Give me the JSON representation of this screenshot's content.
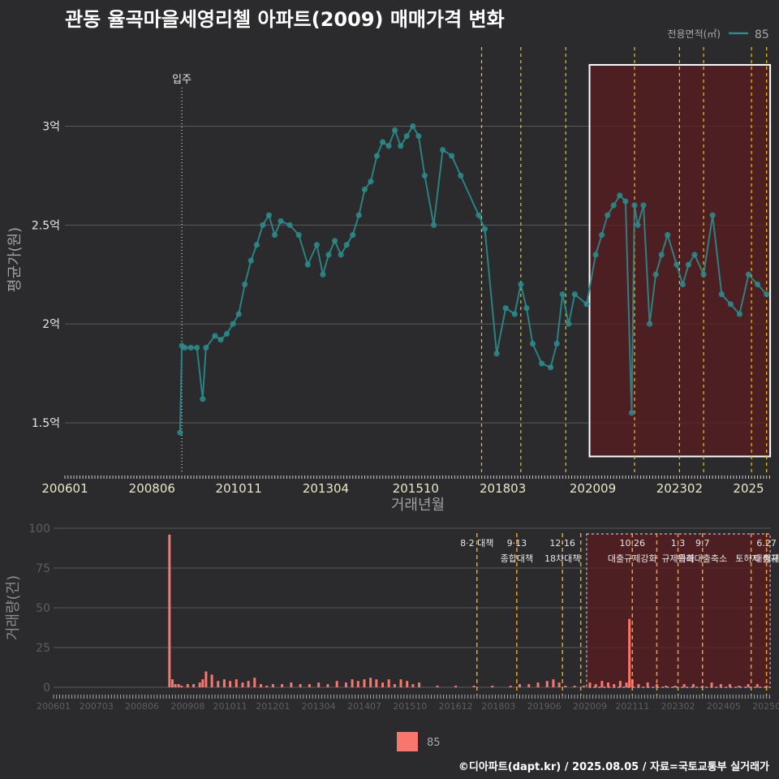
{
  "title": "관동 율곡마을세영리첼 아파트(2009) 매매가격 변화",
  "footer": "©디아파트(dapt.kr) / 2025.08.05 / 자료=국토교통부 실거래가",
  "colors": {
    "background": "#2b2b2d",
    "series": "#2a8c8c",
    "volume_bar": "#f8766d",
    "policy_line": "#f5c400",
    "highlight_fill": "#5a1c1f",
    "grid": "#5a5a5a"
  },
  "chart_data": [
    {
      "type": "line",
      "title": "관동 율곡마을세영리첼 아파트(2009) 매매가격 변화",
      "xlabel": "거래년월",
      "ylabel": "평균가(원)",
      "x_range": [
        2006.0,
        2025.62
      ],
      "ylim": [
        1.25,
        3.4
      ],
      "y_ticks": [
        {
          "v": 1.5,
          "label": "1.5억"
        },
        {
          "v": 2.0,
          "label": "2억"
        },
        {
          "v": 2.5,
          "label": "2.5억"
        },
        {
          "v": 3.0,
          "label": "3억"
        }
      ],
      "x_ticks": [
        {
          "v": 2006.0,
          "label": "200601"
        },
        {
          "v": 2008.42,
          "label": "200806"
        },
        {
          "v": 2010.83,
          "label": "201011"
        },
        {
          "v": 2013.25,
          "label": "201304"
        },
        {
          "v": 2015.75,
          "label": "201510"
        },
        {
          "v": 2018.17,
          "label": "201803"
        },
        {
          "v": 2020.67,
          "label": "202009"
        },
        {
          "v": 2023.08,
          "label": "202302"
        },
        {
          "v": 2025.0,
          "label": "2025"
        }
      ],
      "legend": {
        "title": "전용면적(㎡)",
        "label": "85",
        "position": "top-right"
      },
      "annotation": {
        "label": "입주",
        "x": 2009.25
      },
      "policy_lines_x": [
        2017.58,
        2018.67,
        2019.92,
        2021.83,
        2023.08,
        2023.75,
        2025.08,
        2025.5
      ],
      "highlight": {
        "x_start": 2020.58,
        "x_end": 2025.6,
        "y_start": 1.33,
        "y_end": 3.31
      },
      "series": [
        {
          "name": "85",
          "x": [
            2009.2,
            2009.25,
            2009.33,
            2009.5,
            2009.67,
            2009.83,
            2009.92,
            2010.17,
            2010.33,
            2010.5,
            2010.67,
            2010.83,
            2011.0,
            2011.17,
            2011.33,
            2011.5,
            2011.67,
            2011.83,
            2012.0,
            2012.25,
            2012.5,
            2012.75,
            2013.0,
            2013.17,
            2013.33,
            2013.5,
            2013.67,
            2013.83,
            2014.0,
            2014.17,
            2014.33,
            2014.5,
            2014.67,
            2014.83,
            2015.0,
            2015.17,
            2015.33,
            2015.5,
            2015.67,
            2015.83,
            2016.0,
            2016.25,
            2016.5,
            2016.75,
            2017.0,
            2017.5,
            2017.67,
            2018.0,
            2018.25,
            2018.5,
            2018.67,
            2018.83,
            2019.0,
            2019.25,
            2019.5,
            2019.67,
            2019.83,
            2020.0,
            2020.17,
            2020.5,
            2020.75,
            2020.92,
            2021.08,
            2021.25,
            2021.42,
            2021.58,
            2021.75,
            2021.83,
            2021.92,
            2022.08,
            2022.25,
            2022.42,
            2022.58,
            2022.75,
            2023.0,
            2023.17,
            2023.33,
            2023.5,
            2023.75,
            2024.0,
            2024.25,
            2024.5,
            2024.75,
            2025.0,
            2025.25,
            2025.5
          ],
          "y": [
            1.45,
            1.89,
            1.88,
            1.88,
            1.88,
            1.62,
            1.88,
            1.94,
            1.92,
            1.95,
            2.0,
            2.05,
            2.2,
            2.32,
            2.4,
            2.5,
            2.55,
            2.45,
            2.52,
            2.5,
            2.45,
            2.3,
            2.4,
            2.25,
            2.35,
            2.42,
            2.35,
            2.4,
            2.45,
            2.55,
            2.68,
            2.72,
            2.85,
            2.92,
            2.9,
            2.98,
            2.9,
            2.95,
            3.0,
            2.95,
            2.75,
            2.5,
            2.88,
            2.85,
            2.75,
            2.55,
            2.48,
            1.85,
            2.08,
            2.05,
            2.2,
            2.08,
            1.9,
            1.8,
            1.78,
            1.9,
            2.15,
            2.0,
            2.15,
            2.1,
            2.35,
            2.45,
            2.55,
            2.6,
            2.65,
            2.62,
            1.55,
            2.6,
            2.5,
            2.6,
            2.0,
            2.25,
            2.35,
            2.45,
            2.3,
            2.2,
            2.3,
            2.35,
            2.25,
            2.55,
            2.15,
            2.1,
            2.05,
            2.25,
            2.2,
            2.15
          ]
        }
      ]
    },
    {
      "type": "bar",
      "ylabel": "거래량(건)",
      "x_range": [
        2006.0,
        2025.62
      ],
      "ylim": [
        0,
        100
      ],
      "y_ticks": [
        {
          "v": 0,
          "label": "0"
        },
        {
          "v": 25,
          "label": "25"
        },
        {
          "v": 50,
          "label": "50"
        },
        {
          "v": 75,
          "label": "75"
        },
        {
          "v": 100,
          "label": "100"
        }
      ],
      "x_ticks": [
        {
          "v": 2006.0,
          "label": "200601"
        },
        {
          "v": 2007.17,
          "label": "200703"
        },
        {
          "v": 2008.42,
          "label": "200806"
        },
        {
          "v": 2009.67,
          "label": "200908"
        },
        {
          "v": 2010.83,
          "label": "201011"
        },
        {
          "v": 2012.0,
          "label": "201201"
        },
        {
          "v": 2013.25,
          "label": "201304"
        },
        {
          "v": 2014.5,
          "label": "201407"
        },
        {
          "v": 2015.75,
          "label": "201510"
        },
        {
          "v": 2017.0,
          "label": "201612"
        },
        {
          "v": 2018.17,
          "label": "201803"
        },
        {
          "v": 2019.42,
          "label": "201906"
        },
        {
          "v": 2020.67,
          "label": "202009"
        },
        {
          "v": 2021.83,
          "label": "202111"
        },
        {
          "v": 2023.08,
          "label": "202302"
        },
        {
          "v": 2024.33,
          "label": "202405"
        },
        {
          "v": 2025.5,
          "label": "20250"
        }
      ],
      "legend": {
        "label": "85",
        "position": "bottom"
      },
      "policy_lines_x": [
        2017.58,
        2018.67,
        2019.92,
        2020.42,
        2021.83,
        2022.5,
        2023.08,
        2023.75,
        2025.08,
        2025.5
      ],
      "highlight": {
        "x_start": 2020.58,
        "x_end": 2025.6
      },
      "policies": [
        {
          "x": 2017.58,
          "date": "8·2 대책",
          "name": ""
        },
        {
          "x": 2018.67,
          "date": "9·13",
          "name": "종합대책"
        },
        {
          "x": 2019.92,
          "date": "12·16",
          "name": "18차대책"
        },
        {
          "x": 2021.83,
          "date": "10.26",
          "name": "대출규제강화"
        },
        {
          "x": 2023.08,
          "date": "1.3",
          "name": "규제완화"
        },
        {
          "x": 2023.75,
          "date": "9.7",
          "name": "특례대출축소"
        },
        {
          "x": 2025.25,
          "date": "",
          "name": "토허제 해제"
        },
        {
          "x": 2025.5,
          "date": "6.27",
          "name": "대출규"
        }
      ],
      "bars": {
        "x": [
          2009.17,
          2009.25,
          2009.33,
          2009.42,
          2009.5,
          2009.67,
          2009.83,
          2010.0,
          2010.08,
          2010.17,
          2010.33,
          2010.5,
          2010.67,
          2010.83,
          2011.0,
          2011.17,
          2011.33,
          2011.5,
          2011.67,
          2011.83,
          2012.0,
          2012.25,
          2012.5,
          2012.75,
          2013.0,
          2013.25,
          2013.5,
          2013.75,
          2014.0,
          2014.17,
          2014.33,
          2014.5,
          2014.67,
          2014.83,
          2015.0,
          2015.17,
          2015.33,
          2015.5,
          2015.67,
          2015.83,
          2016.0,
          2016.5,
          2017.0,
          2017.5,
          2018.0,
          2018.5,
          2018.75,
          2019.0,
          2019.25,
          2019.5,
          2019.67,
          2019.83,
          2020.0,
          2020.25,
          2020.5,
          2020.67,
          2020.83,
          2021.0,
          2021.17,
          2021.33,
          2021.5,
          2021.67,
          2021.75,
          2021.83,
          2022.0,
          2022.25,
          2022.5,
          2022.75,
          2023.0,
          2023.25,
          2023.5,
          2023.75,
          2024.0,
          2024.25,
          2024.5,
          2024.75,
          2025.0,
          2025.25,
          2025.5
        ],
        "values": [
          96,
          5,
          2,
          2,
          1,
          2,
          2,
          3,
          5,
          10,
          8,
          4,
          5,
          4,
          5,
          3,
          4,
          6,
          2,
          1,
          2,
          2,
          3,
          2,
          2,
          3,
          2,
          4,
          3,
          5,
          4,
          5,
          6,
          5,
          3,
          5,
          2,
          5,
          4,
          2,
          3,
          1,
          1,
          1,
          1,
          1,
          2,
          2,
          3,
          4,
          5,
          3,
          1,
          1,
          1,
          3,
          2,
          4,
          3,
          2,
          4,
          3,
          43,
          5,
          2,
          3,
          2,
          1,
          1,
          2,
          2,
          1,
          3,
          2,
          2,
          1,
          2,
          2,
          1
        ]
      }
    }
  ]
}
